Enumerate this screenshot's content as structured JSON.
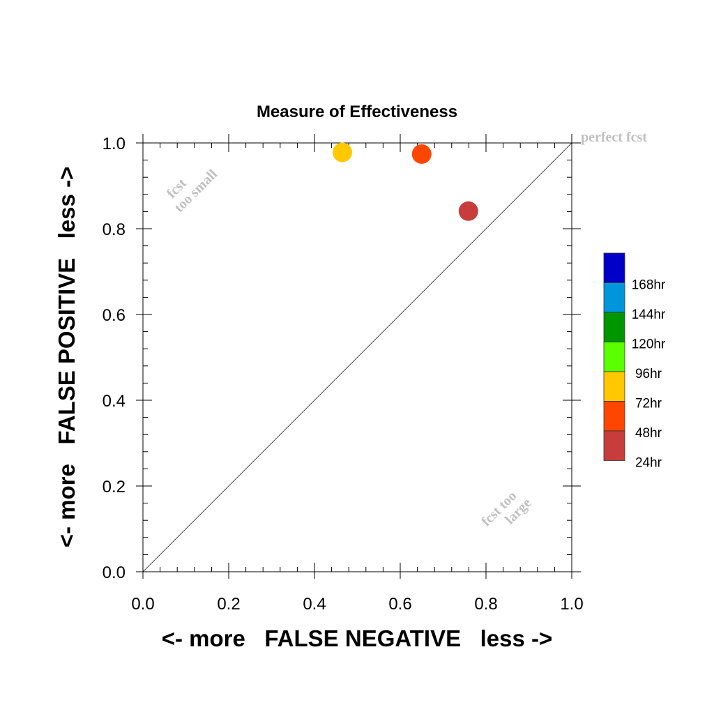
{
  "chart_data": {
    "type": "scatter",
    "title": "Measure of Effectiveness",
    "xlabel": "<- more   FALSE NEGATIVE   less ->",
    "ylabel": "<- more   FALSE POSITIVE   less ->",
    "xlim": [
      0,
      1
    ],
    "ylim": [
      0,
      1
    ],
    "x_ticks": [
      "0.0",
      "0.2",
      "0.4",
      "0.6",
      "0.8",
      "1.0"
    ],
    "y_ticks": [
      "0.0",
      "0.2",
      "0.4",
      "0.6",
      "0.8",
      "1.0"
    ],
    "grid": false,
    "diagonal_line": true,
    "annotations": {
      "perfect": "perfect fcst",
      "too_small_line1": "fcst",
      "too_small_line2": "too small",
      "too_large_line1": "fcst too",
      "too_large_line2": "large"
    },
    "legend_placement": "right",
    "legend": [
      {
        "label": "168hr",
        "color": "#0000c8"
      },
      {
        "label": "144hr",
        "color": "#0096dc"
      },
      {
        "label": "120hr",
        "color": "#009600"
      },
      {
        "label": "96hr",
        "color": "#5aff00"
      },
      {
        "label": "72hr",
        "color": "#ffc800"
      },
      {
        "label": "48hr",
        "color": "#ff4600"
      },
      {
        "label": "24hr",
        "color": "#c83c3c"
      }
    ],
    "points": [
      {
        "series": "72hr",
        "x": 0.465,
        "y": 0.978,
        "color": "#ffc800"
      },
      {
        "series": "48hr",
        "x": 0.65,
        "y": 0.974,
        "color": "#ff4600"
      },
      {
        "series": "24hr",
        "x": 0.759,
        "y": 0.841,
        "color": "#c83c3c"
      }
    ]
  }
}
